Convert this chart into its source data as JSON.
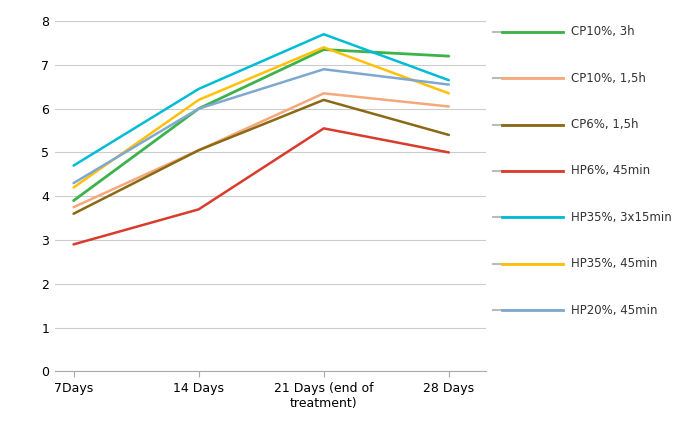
{
  "x_positions": [
    0,
    1,
    2,
    3
  ],
  "x_labels": [
    "7Days",
    "14 Days",
    "21 Days (end of\ntreatment)",
    "28 Days"
  ],
  "series": [
    {
      "label": "CP10%, 3h",
      "color": "#3CB34A",
      "linewidth": 2.0,
      "values": [
        3.9,
        6.0,
        7.35,
        7.2
      ]
    },
    {
      "label": "CP10%, 1,5h",
      "color": "#F5A87A",
      "linewidth": 1.8,
      "values": [
        3.75,
        5.05,
        6.35,
        6.05
      ]
    },
    {
      "label": "CP6%, 1,5h",
      "color": "#8B6914",
      "linewidth": 1.8,
      "values": [
        3.6,
        5.05,
        6.2,
        5.4
      ]
    },
    {
      "label": "HP6%, 45min",
      "color": "#D93B2C",
      "linewidth": 1.8,
      "values": [
        2.9,
        3.7,
        5.55,
        5.0
      ]
    },
    {
      "label": "HP35%, 3x15min",
      "color": "#00BCD4",
      "linewidth": 1.8,
      "values": [
        4.7,
        6.45,
        7.7,
        6.65
      ]
    },
    {
      "label": "HP35%, 45min",
      "color": "#FFC107",
      "linewidth": 1.8,
      "values": [
        4.2,
        6.2,
        7.4,
        6.35
      ]
    },
    {
      "label": "HP20%, 45min",
      "color": "#7FA8D0",
      "linewidth": 1.8,
      "values": [
        4.3,
        6.0,
        6.9,
        6.55
      ]
    }
  ],
  "ylim": [
    0,
    8
  ],
  "yticks": [
    0,
    1,
    2,
    3,
    4,
    5,
    6,
    7,
    8
  ],
  "background_color": "#ffffff",
  "grid_color": "#cccccc",
  "legend_gray_line_color": "#bbbbbb",
  "spine_color": "#aaaaaa"
}
